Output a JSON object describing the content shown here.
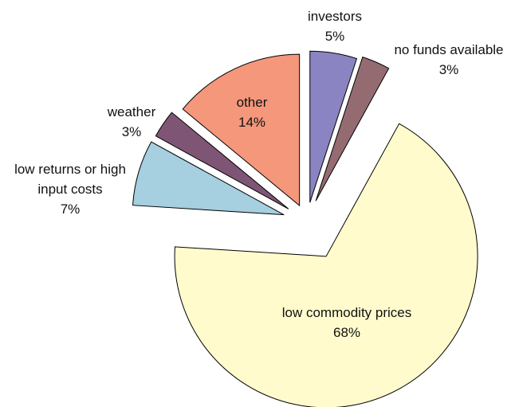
{
  "chart_data": {
    "type": "pie",
    "categories": [
      "investors",
      "no funds available",
      "low commodity prices",
      "low returns or high input costs",
      "weather",
      "other"
    ],
    "values": [
      5,
      3,
      68,
      7,
      3,
      14
    ],
    "value_labels": [
      "5%",
      "3%",
      "68%",
      "7%",
      "3%",
      "14%"
    ],
    "colors": [
      "#8a84c2",
      "#956b72",
      "#fffbcc",
      "#a6cfe0",
      "#7f5575",
      "#f4977b"
    ]
  }
}
